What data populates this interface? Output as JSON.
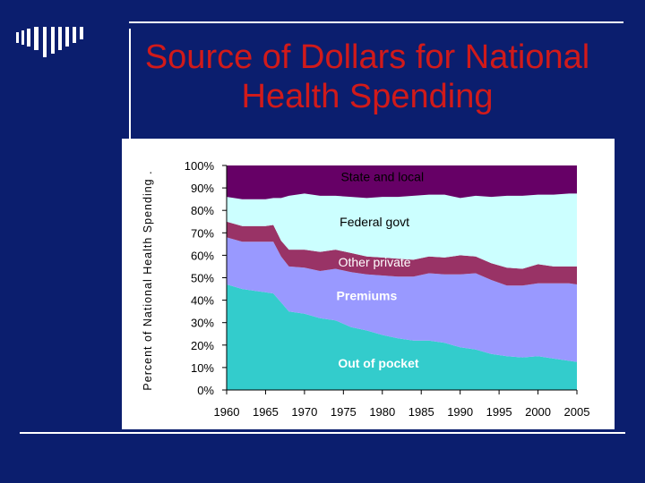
{
  "slide": {
    "title_line1": "Source of Dollars for National",
    "title_line2": "Health Spending",
    "background_color": "#0b1e6e",
    "title_color": "#d11a1a"
  },
  "chart_data": {
    "type": "area",
    "stacked": true,
    "title": "Source of Dollars for National Health Spending",
    "ylabel": "Percent of National Health Spending",
    "xlabel": "",
    "ylim": [
      0,
      100
    ],
    "xlim": [
      1960,
      2005
    ],
    "x": [
      1960,
      1962,
      1964,
      1965,
      1966,
      1967,
      1968,
      1970,
      1972,
      1974,
      1976,
      1978,
      1980,
      1982,
      1984,
      1986,
      1988,
      1990,
      1992,
      1994,
      1996,
      1998,
      2000,
      2002,
      2004,
      2005
    ],
    "x_ticks": [
      1960,
      1965,
      1970,
      1975,
      1980,
      1985,
      1990,
      1995,
      2000,
      2005
    ],
    "x_tick_labels": [
      "1960",
      "1965",
      "1970",
      "1975",
      "1980",
      "1985",
      "1990",
      "1995",
      "2000",
      "2005"
    ],
    "y_ticks": [
      0,
      10,
      20,
      30,
      40,
      50,
      60,
      70,
      80,
      90,
      100
    ],
    "y_tick_labels": [
      "0%",
      "10%",
      "20%",
      "30%",
      "40%",
      "50%",
      "60%",
      "70%",
      "80%",
      "90%",
      "100%"
    ],
    "series": [
      {
        "name": "Out of pocket",
        "color": "#33cccc",
        "values": [
          47,
          45,
          44,
          43.5,
          43,
          39,
          35,
          34,
          32,
          31,
          28,
          26.5,
          24.5,
          23,
          22,
          22,
          21,
          19,
          18,
          16,
          15,
          14.5,
          15,
          14,
          13,
          12.5
        ]
      },
      {
        "name": "Premiums",
        "color": "#9999ff",
        "values": [
          21,
          21,
          22,
          22.5,
          23,
          20.5,
          20,
          20.5,
          21,
          23,
          24.5,
          25,
          26.5,
          27.5,
          28.5,
          30,
          30.5,
          32.5,
          34,
          33,
          31.5,
          32,
          32.5,
          33.5,
          34.5,
          34.5
        ]
      },
      {
        "name": "Other private",
        "color": "#993366",
        "values": [
          7,
          7,
          7,
          7,
          7.5,
          7,
          7.5,
          8,
          8.5,
          8.5,
          8.5,
          8,
          8,
          8,
          7.5,
          7.5,
          7.5,
          8.5,
          7.5,
          7.5,
          8,
          7.5,
          8.5,
          7.5,
          7.5,
          8
        ]
      },
      {
        "name": "Federal govt",
        "color": "#ccffff",
        "values": [
          11,
          12,
          12,
          12,
          12,
          19,
          24,
          25,
          25,
          24,
          25,
          26,
          27,
          27.5,
          28.5,
          27.5,
          28,
          25.5,
          27,
          29.5,
          32,
          32.5,
          31,
          32,
          32.5,
          32.5
        ]
      },
      {
        "name": "State and local",
        "color": "#660066",
        "values": [
          14,
          15,
          15,
          15,
          14.5,
          14.5,
          13.5,
          12.5,
          13.5,
          13.5,
          14,
          14.5,
          14,
          14,
          13.5,
          13,
          13,
          14.5,
          13.5,
          14,
          13.5,
          13.5,
          13,
          13,
          13,
          12.5
        ]
      }
    ],
    "annotations": [
      {
        "text": "State and local",
        "x": 1980,
        "y": 95,
        "color": "#000000",
        "bold": false
      },
      {
        "text": "Federal govt",
        "x": 1979,
        "y": 75,
        "color": "#000000",
        "bold": false
      },
      {
        "text": "Other private",
        "x": 1979,
        "y": 57,
        "color": "#ffffff",
        "bold": false
      },
      {
        "text": "Premiums",
        "x": 1978,
        "y": 42,
        "color": "#ffffff",
        "bold": true
      },
      {
        "text": "Out of pocket",
        "x": 1979.5,
        "y": 12,
        "color": "#ffffff",
        "bold": true
      }
    ]
  }
}
